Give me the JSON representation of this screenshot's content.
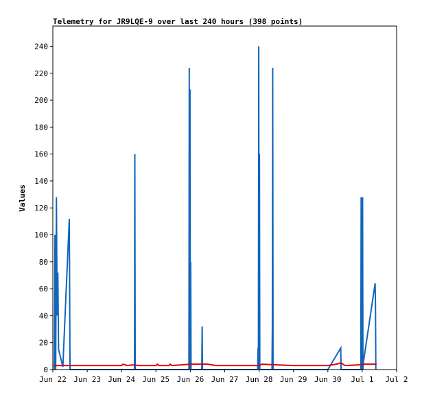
{
  "chart_data": {
    "type": "line",
    "title": "Telemetry for JR9LQE-9 over last 240 hours (398 points)",
    "xlabel": "",
    "ylabel": "Values",
    "x_unit": "day",
    "x_ticks": [
      "Jun 22",
      "Jun 23",
      "Jun 24",
      "Jun 25",
      "Jun 26",
      "Jun 27",
      "Jun 28",
      "Jun 29",
      "Jun 30",
      "Jul 1",
      "Jul 2"
    ],
    "xlim": [
      "Jun 22",
      "Jul 2"
    ],
    "ylim": [
      0,
      255
    ],
    "y_ticks": [
      0,
      20,
      40,
      60,
      80,
      100,
      120,
      140,
      160,
      180,
      200,
      220,
      240
    ],
    "grid": false,
    "series": [
      {
        "color": "#1166bb",
        "points": [
          [
            "Jun 22 01:00",
            0
          ],
          [
            "Jun 22 01:30",
            100
          ],
          [
            "Jun 22 02:00",
            0
          ],
          [
            "Jun 22 02:30",
            128
          ],
          [
            "Jun 22 03:00",
            40
          ],
          [
            "Jun 22 03:30",
            72
          ],
          [
            "Jun 22 04:00",
            15
          ],
          [
            "Jun 22 07:00",
            2
          ],
          [
            "Jun 22 11:00",
            100
          ],
          [
            "Jun 22 11:30",
            112
          ],
          [
            "Jun 22 12:00",
            0
          ],
          [
            "Jun 24 09:00",
            0
          ],
          [
            "Jun 24 09:15",
            160
          ],
          [
            "Jun 24 09:30",
            0
          ],
          [
            "Jun 25 23:00",
            0
          ],
          [
            "Jun 25 23:15",
            224
          ],
          [
            "Jun 25 23:30",
            0
          ],
          [
            "Jun 25 23:45",
            208
          ],
          [
            "Jun 26 00:00",
            0
          ],
          [
            "Jun 26 00:15",
            80
          ],
          [
            "Jun 26 00:30",
            0
          ],
          [
            "Jun 26 08:00",
            0
          ],
          [
            "Jun 26 08:15",
            32
          ],
          [
            "Jun 26 08:30",
            0
          ],
          [
            "Jun 27 23:00",
            0
          ],
          [
            "Jun 27 23:15",
            16
          ],
          [
            "Jun 27 23:30",
            0
          ],
          [
            "Jun 27 23:45",
            240
          ],
          [
            "Jun 28 00:00",
            0
          ],
          [
            "Jun 28 00:15",
            160
          ],
          [
            "Jun 28 00:30",
            0
          ],
          [
            "Jun 28 09:00",
            0
          ],
          [
            "Jun 28 09:15",
            32
          ],
          [
            "Jun 28 09:30",
            224
          ],
          [
            "Jun 28 09:45",
            0
          ],
          [
            "Jun 30 00:00",
            0
          ],
          [
            "Jun 30 09:00",
            16
          ],
          [
            "Jun 30 09:15",
            0
          ],
          [
            "Jun 30 23:00",
            0
          ],
          [
            "Jun 30 23:15",
            128
          ],
          [
            "Jun 30 23:30",
            0
          ],
          [
            "Jun 30 23:45",
            64
          ],
          [
            "Jul 1 00:00",
            0
          ],
          [
            "Jul 1 00:15",
            128
          ],
          [
            "Jul 1 00:30",
            0
          ],
          [
            "Jul 1 00:45",
            5
          ],
          [
            "Jul 1 09:00",
            64
          ],
          [
            "Jul 1 09:15",
            48
          ],
          [
            "Jul 1 09:30",
            0
          ]
        ]
      },
      {
        "color": "#dd0000",
        "points": [
          [
            "Jun 22 00:00",
            3.0
          ],
          [
            "Jun 24 00:00",
            3.0
          ],
          [
            "Jun 24 01:00",
            4.0
          ],
          [
            "Jun 24 04:00",
            3.0
          ],
          [
            "Jun 24 08:00",
            3.5
          ],
          [
            "Jun 24 12:00",
            3.0
          ],
          [
            "Jun 25 00:00",
            3.0
          ],
          [
            "Jun 25 01:00",
            4.0
          ],
          [
            "Jun 25 02:00",
            3.0
          ],
          [
            "Jun 25 09:00",
            3.0
          ],
          [
            "Jun 25 10:00",
            4.0
          ],
          [
            "Jun 25 11:00",
            3.0
          ],
          [
            "Jun 25 18:00",
            3.5
          ],
          [
            "Jun 26 00:00",
            4.0
          ],
          [
            "Jun 26 12:00",
            4.0
          ],
          [
            "Jun 26 18:00",
            3.0
          ],
          [
            "Jun 28 00:00",
            3.0
          ],
          [
            "Jun 28 02:00",
            4.0
          ],
          [
            "Jun 28 12:00",
            3.5
          ],
          [
            "Jun 29 00:00",
            3.0
          ],
          [
            "Jun 30 00:00",
            3.0
          ],
          [
            "Jun 30 06:00",
            4.0
          ],
          [
            "Jun 30 09:00",
            5.0
          ],
          [
            "Jun 30 12:00",
            3.0
          ],
          [
            "Jun 30 22:00",
            3.5
          ],
          [
            "Jul 1 00:00",
            4.0
          ],
          [
            "Jul 1 10:00",
            4.0
          ]
        ]
      }
    ]
  }
}
